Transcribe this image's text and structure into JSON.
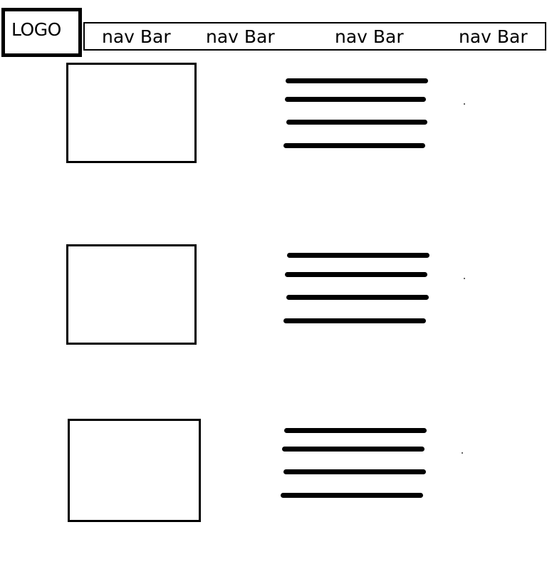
{
  "logo": {
    "label": "LOGO"
  },
  "navbar": {
    "items": [
      {
        "label": "nav Bar"
      },
      {
        "label": "nav Bar"
      },
      {
        "label": "nav Bar"
      },
      {
        "label": "nav Bar"
      }
    ]
  },
  "content_rows": [
    {
      "image": "image-placeholder",
      "text_lines": 4
    },
    {
      "image": "image-placeholder",
      "text_lines": 4
    },
    {
      "image": "image-placeholder",
      "text_lines": 4
    }
  ],
  "colors": {
    "stroke": "#000000",
    "background": "#ffffff"
  }
}
